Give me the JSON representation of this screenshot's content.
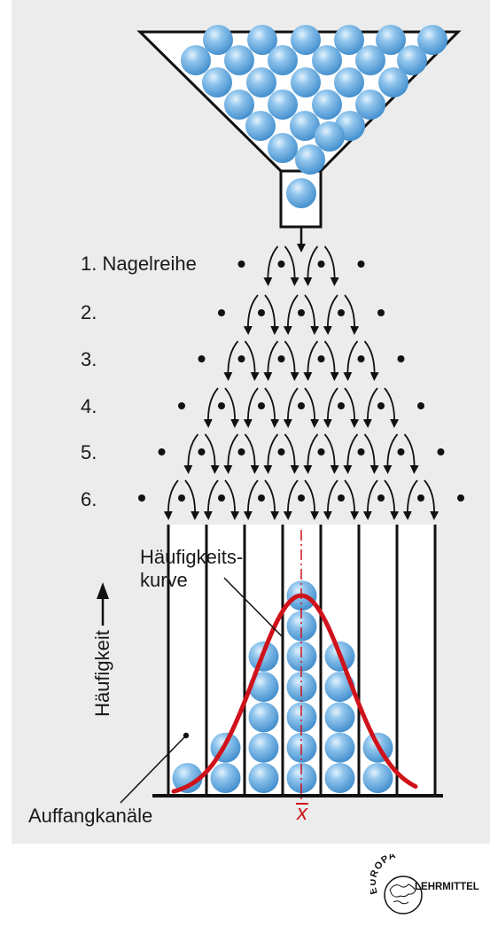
{
  "rows": {
    "labels": [
      "1. Nagelreihe",
      "2.",
      "3.",
      "4.",
      "5.",
      "6."
    ]
  },
  "curve_label_line1": "Häufigkeits-",
  "curve_label_line2": "kurve",
  "axis_label": "Häufigkeit",
  "channels_label": "Auffangkanäle",
  "mean_symbol": "x",
  "logo": {
    "text_top": "EUROPA",
    "text_bottom": "LEHRMITTEL"
  },
  "colors": {
    "ball": "#5ea6dc",
    "curve": "#d0121b",
    "panel": "#ececec",
    "ink": "#111111"
  },
  "channel_counts": [
    1,
    2,
    5,
    7,
    5,
    2,
    0,
    0
  ],
  "hopper_balls": 27
}
